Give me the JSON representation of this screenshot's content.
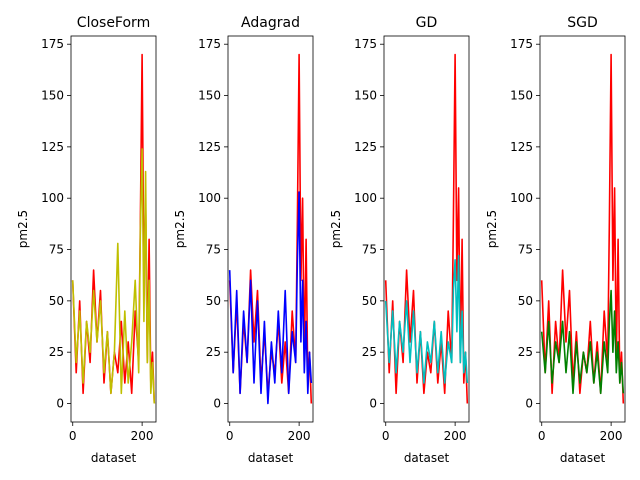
{
  "chart_data": [
    {
      "type": "line",
      "title": "CloseForm",
      "xlabel": "dataset",
      "ylabel": "pm2.5",
      "xlim": [
        -5,
        240
      ],
      "ylim": [
        -9,
        179
      ],
      "xticks": [
        0,
        200
      ],
      "yticks": [
        0,
        25,
        50,
        75,
        100,
        125,
        150,
        175
      ],
      "series": [
        {
          "color": "#ff0000",
          "x": [
            0,
            10,
            20,
            30,
            40,
            50,
            60,
            70,
            80,
            90,
            100,
            110,
            120,
            130,
            140,
            150,
            160,
            170,
            180,
            190,
            195,
            200,
            205,
            210,
            215,
            220,
            225,
            230,
            235
          ],
          "values": [
            60,
            15,
            50,
            5,
            40,
            20,
            65,
            30,
            55,
            10,
            35,
            5,
            25,
            15,
            40,
            10,
            30,
            5,
            45,
            20,
            90,
            170,
            60,
            100,
            20,
            80,
            10,
            25,
            0
          ]
        },
        {
          "color": "#bfbf00",
          "x": [
            0,
            10,
            20,
            30,
            40,
            50,
            60,
            70,
            80,
            90,
            100,
            110,
            120,
            130,
            140,
            150,
            160,
            170,
            180,
            190,
            195,
            200,
            205,
            210,
            215,
            220,
            225,
            230,
            235
          ],
          "values": [
            60,
            20,
            45,
            10,
            40,
            25,
            55,
            30,
            50,
            15,
            35,
            5,
            25,
            78,
            5,
            45,
            10,
            30,
            60,
            15,
            85,
            124,
            40,
            113,
            20,
            60,
            5,
            20,
            0
          ]
        }
      ]
    },
    {
      "type": "line",
      "title": "Adagrad",
      "xlabel": "dataset",
      "ylabel": "pm2.5",
      "xlim": [
        -5,
        240
      ],
      "ylim": [
        -9,
        179
      ],
      "xticks": [
        0,
        200
      ],
      "yticks": [
        0,
        25,
        50,
        75,
        100,
        125,
        150,
        175
      ],
      "series": [
        {
          "color": "#ff0000",
          "x": [
            0,
            10,
            20,
            30,
            40,
            50,
            60,
            70,
            80,
            90,
            100,
            110,
            120,
            130,
            140,
            150,
            160,
            170,
            180,
            190,
            195,
            200,
            205,
            210,
            215,
            220,
            225,
            230,
            235
          ],
          "values": [
            60,
            15,
            50,
            5,
            40,
            20,
            65,
            30,
            55,
            10,
            35,
            5,
            25,
            15,
            40,
            10,
            30,
            5,
            45,
            20,
            90,
            170,
            60,
            100,
            20,
            80,
            10,
            25,
            0
          ]
        },
        {
          "color": "#0000ff",
          "x": [
            0,
            10,
            20,
            30,
            40,
            50,
            60,
            70,
            80,
            90,
            100,
            110,
            120,
            130,
            140,
            150,
            160,
            170,
            180,
            190,
            195,
            200,
            205,
            210,
            215,
            220,
            225,
            230,
            235
          ],
          "values": [
            65,
            15,
            55,
            5,
            45,
            20,
            60,
            10,
            50,
            5,
            40,
            0,
            30,
            10,
            45,
            15,
            55,
            5,
            35,
            20,
            70,
            103,
            30,
            60,
            15,
            40,
            5,
            25,
            10
          ]
        }
      ]
    },
    {
      "type": "line",
      "title": "GD",
      "xlabel": "dataset",
      "ylabel": "pm2.5",
      "xlim": [
        -5,
        240
      ],
      "ylim": [
        -9,
        179
      ],
      "xticks": [
        0,
        200
      ],
      "yticks": [
        0,
        25,
        50,
        75,
        100,
        125,
        150,
        175
      ],
      "series": [
        {
          "color": "#ff0000",
          "x": [
            0,
            10,
            20,
            30,
            40,
            50,
            60,
            70,
            80,
            90,
            100,
            110,
            120,
            130,
            140,
            150,
            160,
            170,
            180,
            190,
            195,
            200,
            205,
            210,
            215,
            220,
            225,
            230,
            235
          ],
          "values": [
            60,
            15,
            50,
            5,
            40,
            20,
            65,
            30,
            55,
            10,
            35,
            5,
            25,
            15,
            40,
            10,
            30,
            5,
            45,
            20,
            90,
            170,
            60,
            105,
            20,
            80,
            10,
            25,
            0
          ]
        },
        {
          "color": "#00bfbf",
          "x": [
            0,
            10,
            20,
            30,
            40,
            50,
            60,
            70,
            80,
            90,
            100,
            110,
            120,
            130,
            140,
            150,
            160,
            170,
            180,
            190,
            195,
            200,
            205,
            210,
            215,
            220,
            225,
            230,
            235
          ],
          "values": [
            50,
            20,
            45,
            15,
            40,
            25,
            50,
            20,
            45,
            15,
            35,
            10,
            30,
            20,
            40,
            15,
            35,
            10,
            30,
            20,
            55,
            70,
            35,
            72,
            20,
            45,
            15,
            25,
            10
          ]
        }
      ]
    },
    {
      "type": "line",
      "title": "SGD",
      "xlabel": "dataset",
      "ylabel": "pm2.5",
      "xlim": [
        -5,
        240
      ],
      "ylim": [
        -9,
        179
      ],
      "xticks": [
        0,
        200
      ],
      "yticks": [
        0,
        25,
        50,
        75,
        100,
        125,
        150,
        175
      ],
      "series": [
        {
          "color": "#ff0000",
          "x": [
            0,
            10,
            20,
            30,
            40,
            50,
            60,
            70,
            80,
            90,
            100,
            110,
            120,
            130,
            140,
            150,
            160,
            170,
            180,
            190,
            195,
            200,
            205,
            210,
            215,
            220,
            225,
            230,
            235
          ],
          "values": [
            60,
            15,
            50,
            5,
            40,
            20,
            65,
            30,
            55,
            10,
            35,
            5,
            25,
            15,
            40,
            10,
            30,
            5,
            45,
            20,
            90,
            170,
            60,
            105,
            20,
            80,
            10,
            25,
            0
          ]
        },
        {
          "color": "#008000",
          "x": [
            0,
            10,
            20,
            30,
            40,
            50,
            60,
            70,
            80,
            90,
            100,
            110,
            120,
            130,
            140,
            150,
            160,
            170,
            180,
            190,
            195,
            200,
            205,
            210,
            215,
            220,
            225,
            230,
            235
          ],
          "values": [
            35,
            15,
            40,
            10,
            30,
            20,
            40,
            15,
            35,
            5,
            30,
            10,
            25,
            15,
            30,
            10,
            25,
            5,
            30,
            15,
            40,
            55,
            25,
            45,
            15,
            30,
            10,
            20,
            5
          ]
        }
      ]
    }
  ]
}
